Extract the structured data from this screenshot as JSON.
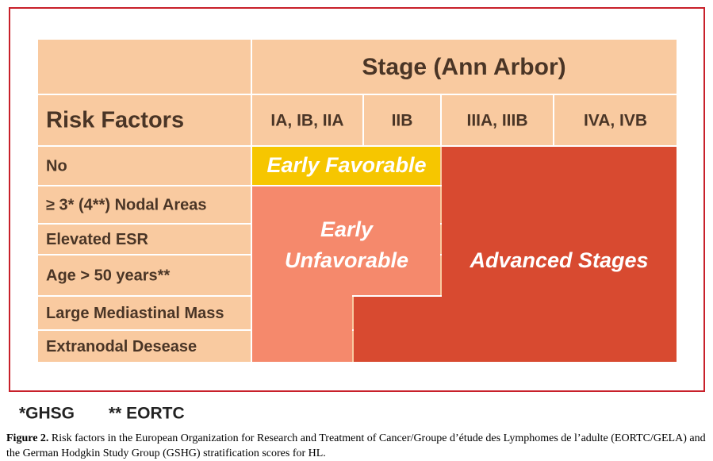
{
  "header": {
    "risk_factors_title": "Risk Factors",
    "stage_title": "Stage (Ann Arbor)",
    "stages": [
      "IA, IB, IIA",
      "IIB",
      "IIIA, IIIB",
      "IVA, IVB"
    ]
  },
  "rows": [
    "No",
    "≥ 3* (4**) Nodal Areas",
    "Elevated ESR",
    "Age > 50 years**",
    "Large Mediastinal Mass",
    "Extranodal Desease"
  ],
  "regions": {
    "early_favorable": "Early Favorable",
    "early_unfavorable": [
      "Early",
      "Unfavorable"
    ],
    "advanced": "Advanced Stages"
  },
  "footnotes": [
    "*GHSG",
    "** EORTC"
  ],
  "caption": {
    "label": "Figure 2.",
    "text": "Risk factors in the European Organization for Research and Treatment of Cancer/Groupe d’étude des Lymphomes de l’adulte (EORTC/GELA) and the German Hodgkin Study Group (GSHG) stratification scores for HL."
  }
}
